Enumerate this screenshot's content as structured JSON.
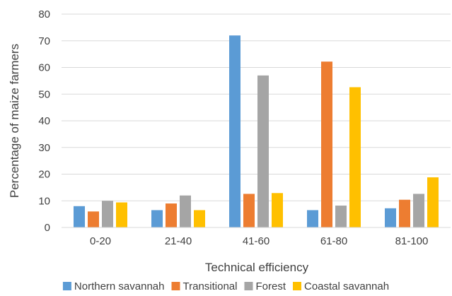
{
  "chart_data": {
    "type": "bar",
    "title": "",
    "xlabel": "Technical efficiency",
    "ylabel": "Percentage of maize farmers",
    "categories": [
      "0-20",
      "21-40",
      "41-60",
      "61-80",
      "81-100"
    ],
    "ylim": [
      0,
      80
    ],
    "yticks": [
      0,
      10,
      20,
      30,
      40,
      50,
      60,
      70,
      80
    ],
    "grid": true,
    "legend_position": "bottom",
    "series": [
      {
        "name": "Northern savannah",
        "color": "#5B9BD5",
        "values": [
          8.0,
          6.5,
          72.0,
          6.5,
          7.2
        ]
      },
      {
        "name": "Transitional",
        "color": "#ED7D31",
        "values": [
          6.0,
          9.0,
          12.6,
          62.2,
          10.4
        ]
      },
      {
        "name": "Forest",
        "color": "#A5A5A5",
        "values": [
          10.0,
          12.0,
          57.0,
          8.2,
          12.6
        ]
      },
      {
        "name": "Coastal savannah",
        "color": "#FFC000",
        "values": [
          9.4,
          6.5,
          12.9,
          52.6,
          18.8
        ]
      }
    ]
  }
}
